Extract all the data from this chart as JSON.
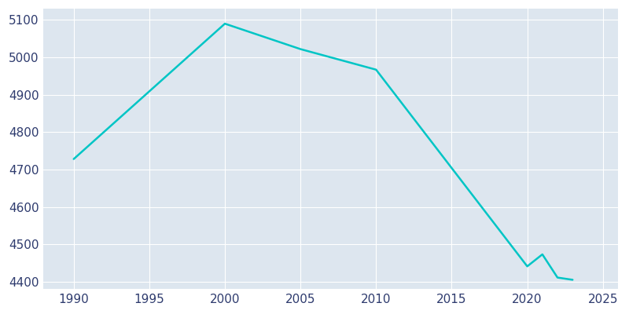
{
  "years": [
    1990,
    2000,
    2005,
    2010,
    2020,
    2021,
    2022,
    2023
  ],
  "population": [
    4728,
    5090,
    5022,
    4967,
    4441,
    4473,
    4411,
    4405
  ],
  "line_color": "#00C5C5",
  "plot_bg_color": "#DDE6EF",
  "fig_bg_color": "#ffffff",
  "grid_color": "#ffffff",
  "text_color": "#2E3B6E",
  "xlim": [
    1988,
    2026
  ],
  "ylim": [
    4380,
    5130
  ],
  "xticks": [
    1990,
    1995,
    2000,
    2005,
    2010,
    2015,
    2020,
    2025
  ],
  "yticks": [
    4400,
    4500,
    4600,
    4700,
    4800,
    4900,
    5000,
    5100
  ],
  "line_width": 1.8,
  "figsize": [
    8.0,
    4.0
  ],
  "dpi": 100
}
